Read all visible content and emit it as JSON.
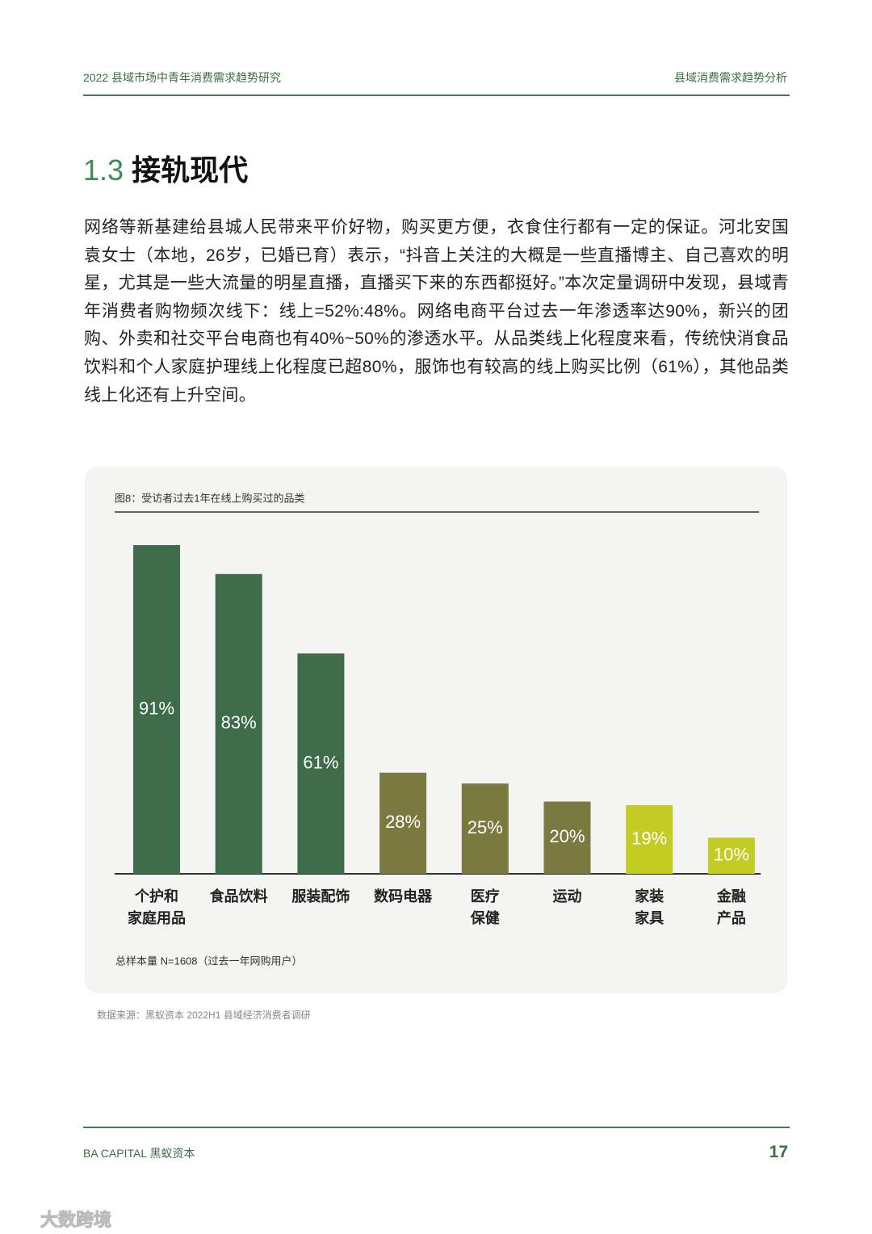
{
  "header": {
    "left": "2022 县域市场中青年消费需求趋势研究",
    "right": "县域消费需求趋势分析"
  },
  "section": {
    "number": "1.3",
    "title": "接轨现代"
  },
  "paragraph": "网络等新基建给县城人民带来平价好物，购买更方便，衣食住行都有一定的保证。河北安国袁女士（本地，26岁，已婚已育）表示，“抖音上关注的大概是一些直播博主、自己喜欢的明星，尤其是一些大流量的明星直播，直播买下来的东西都挺好。”本次定量调研中发现，县域青年消费者购物频次线下：线上=52%:48%。网络电商平台过去一年渗透率达90%，新兴的团购、外卖和社交平台电商也有40%~50%的渗透水平。从品类线上化程度来看，传统快消食品饮料和个人家庭护理线上化程度已超80%，服饰也有较高的线上购买比例（61%），其他品类线上化还有上升空间。",
  "chart_data": {
    "type": "bar",
    "title": "图8：受访者过去1年在线上购买过的品类",
    "categories": [
      [
        "个护和",
        "家庭用品"
      ],
      [
        "食品饮料"
      ],
      [
        "服装配饰"
      ],
      [
        "数码电器"
      ],
      [
        "医疗",
        "保健"
      ],
      [
        "运动"
      ],
      [
        "家装",
        "家具"
      ],
      [
        "金融",
        "产品"
      ]
    ],
    "values": [
      91,
      83,
      61,
      28,
      25,
      20,
      19,
      10
    ],
    "value_labels": [
      "91%",
      "83%",
      "61%",
      "28%",
      "25%",
      "20%",
      "19%",
      "10%"
    ],
    "colors": [
      "#3e6b49",
      "#3e6b49",
      "#3e6b49",
      "#7a7a40",
      "#7a7a40",
      "#7a7a40",
      "#c3cc22",
      "#c3cc22"
    ],
    "note": "总样本量 N=1608（过去一年网购用户）"
  },
  "source": "数据来源：黑蚁资本 2022H1 县域经济消费者调研",
  "footer": {
    "brand": "BA CAPITAL 黑蚁资本",
    "page": "17"
  },
  "watermark": "大数跨境"
}
